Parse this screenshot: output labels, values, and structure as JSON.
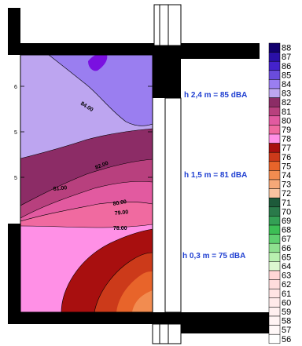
{
  "chart_data": {
    "type": "heatmap",
    "title": "",
    "xlabel": "",
    "ylabel": "",
    "y_ticks": [
      "6",
      "5",
      "5"
    ],
    "annotations": [
      {
        "label": "h 2,4 m = 85 dBA",
        "height_m": 2.4,
        "level_dba": 85
      },
      {
        "label": "h 1,5 m = 81 dBA",
        "height_m": 1.5,
        "level_dba": 81
      },
      {
        "label": "h 0,3 m = 75 dBA",
        "height_m": 0.3,
        "level_dba": 75
      }
    ],
    "contour_labels": [
      "84.00",
      "82.00",
      "81.00",
      "80.00",
      "79.00",
      "78.00"
    ],
    "legend": [
      {
        "value": "88",
        "color": "#12006e"
      },
      {
        "value": "87",
        "color": "#2a10a8"
      },
      {
        "value": "86",
        "color": "#4422cc"
      },
      {
        "value": "85",
        "color": "#6a4cdc"
      },
      {
        "value": "84",
        "color": "#9a7ef0"
      },
      {
        "value": "83",
        "color": "#bda5f0"
      },
      {
        "value": "82",
        "color": "#8c2c66"
      },
      {
        "value": "81",
        "color": "#b8407e"
      },
      {
        "value": "80",
        "color": "#e25aa0"
      },
      {
        "value": "79",
        "color": "#f06aa0"
      },
      {
        "value": "78",
        "color": "#ff90e6"
      },
      {
        "value": "77",
        "color": "#a80f0f"
      },
      {
        "value": "76",
        "color": "#cc3a1a"
      },
      {
        "value": "75",
        "color": "#e8642a"
      },
      {
        "value": "74",
        "color": "#f28c50"
      },
      {
        "value": "73",
        "color": "#f5a878"
      },
      {
        "value": "72",
        "color": "#f7c4a0"
      },
      {
        "value": "71",
        "color": "#1d5a3a"
      },
      {
        "value": "70",
        "color": "#2a7a4a"
      },
      {
        "value": "69",
        "color": "#34a055"
      },
      {
        "value": "68",
        "color": "#3cbf55"
      },
      {
        "value": "67",
        "color": "#5fd070"
      },
      {
        "value": "66",
        "color": "#8fe090"
      },
      {
        "value": "65",
        "color": "#b8f0b0"
      },
      {
        "value": "64",
        "color": "#dcf8d0"
      },
      {
        "value": "63",
        "color": "#ffd6d6"
      },
      {
        "value": "62",
        "color": "#ffdcdc"
      },
      {
        "value": "61",
        "color": "#ffe4e4"
      },
      {
        "value": "60",
        "color": "#ffeaea"
      },
      {
        "value": "59",
        "color": "#fff0f0"
      },
      {
        "value": "58",
        "color": "#fff4f4"
      },
      {
        "value": "57",
        "color": "#fff8f8"
      },
      {
        "value": "56",
        "color": "#ffffff"
      }
    ]
  }
}
